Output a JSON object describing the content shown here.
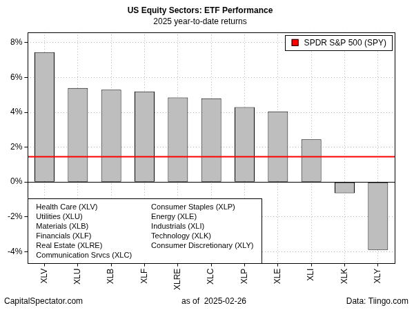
{
  "chart_data": {
    "type": "bar",
    "title": "US Equity Sectors: ETF Performance",
    "subtitle": "2025 year-to-date returns",
    "categories": [
      "XLV",
      "XLU",
      "XLB",
      "XLF",
      "XLRE",
      "XLC",
      "XLP",
      "XLE",
      "XLI",
      "XLK",
      "XLY"
    ],
    "values": [
      7.45,
      5.4,
      5.3,
      5.2,
      4.85,
      4.8,
      4.3,
      4.05,
      2.45,
      -0.65,
      -3.9
    ],
    "color": "#bebebe",
    "ylim": [
      -4.65,
      8.6
    ],
    "yticks": [
      {
        "value": -4,
        "label": "-4%"
      },
      {
        "value": -2,
        "label": "-2%"
      },
      {
        "value": 0,
        "label": "0%"
      },
      {
        "value": 2,
        "label": "2%"
      },
      {
        "value": 4,
        "label": "4%"
      },
      {
        "value": 6,
        "label": "6%"
      },
      {
        "value": 8,
        "label": "8%"
      }
    ],
    "grid": true,
    "legend": "top-right",
    "reference_line": {
      "name": "SPDR S&P 500 (SPY)",
      "value": 1.45,
      "color": "#ff0000"
    },
    "annotations": [
      "Health Care (XLV)",
      "Utilities (XLU)",
      "Materials (XLB)",
      "Financials (XLF)",
      "Real Estate (XLRE)",
      "Communication Srvcs (XLC)",
      "Consumer Staples (XLP)",
      "Energy (XLE)",
      "Industrials (XLI)",
      "Technology (XLK)",
      "Consumer Discretionary (XLY)"
    ],
    "footer": {
      "left": "CapitalSpectator.com",
      "center": "as of  2025-02-26",
      "right": "Data: Tiingo.com"
    }
  }
}
